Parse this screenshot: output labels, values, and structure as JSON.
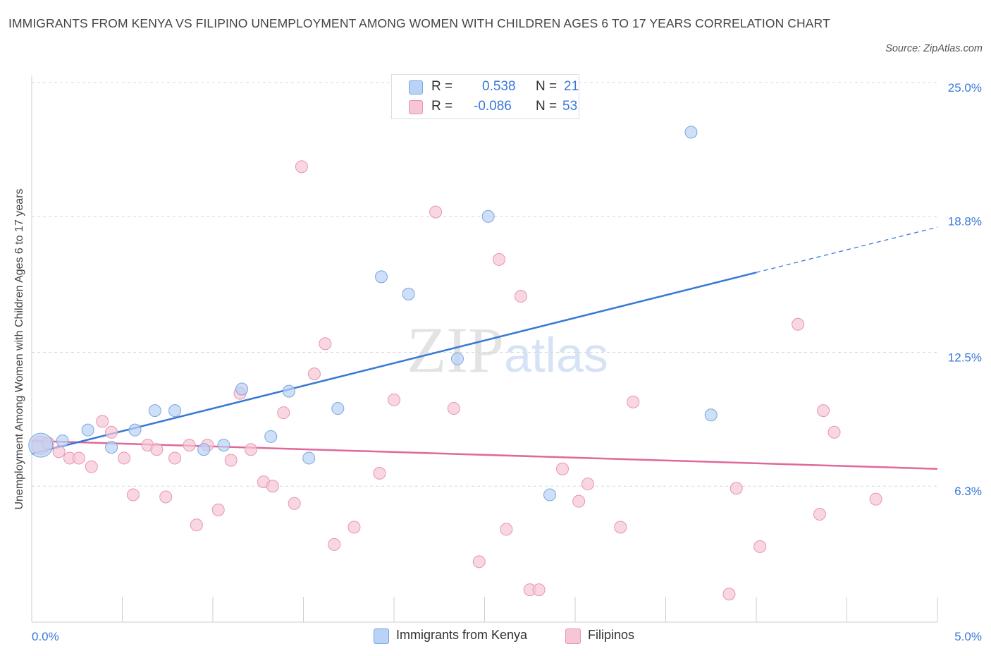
{
  "title": "IMMIGRANTS FROM KENYA VS FILIPINO UNEMPLOYMENT AMONG WOMEN WITH CHILDREN AGES 6 TO 17 YEARS CORRELATION CHART",
  "source": "Source: ZipAtlas.com",
  "watermark": "ZIPatlas",
  "legend": {
    "r_label": "R =",
    "n_label": "N =",
    "kenya": {
      "r": "0.538",
      "n": "21"
    },
    "filipino": {
      "r": "-0.086",
      "n": "53"
    }
  },
  "colors": {
    "kenya_fill": "#b9d2f5",
    "kenya_stroke": "#7aa6e0",
    "kenya_line": "#3a78d6",
    "filipino_fill": "#f7c6d6",
    "filipino_stroke": "#ea93b1",
    "filipino_line": "#e0689a",
    "axis_text": "#3a78d6",
    "grid": "#d8d8d8"
  },
  "chart_data": {
    "type": "scatter",
    "xlabel": "",
    "ylabel": "Unemployment Among Women with Children Ages 6 to 17 years",
    "xlim": [
      0,
      5
    ],
    "ylim": [
      0,
      25
    ],
    "x_tick_labels": [
      "0.0%",
      "5.0%"
    ],
    "y_ticks": [
      6.3,
      12.5,
      18.8,
      25.0
    ],
    "y_tick_labels": [
      "6.3%",
      "12.5%",
      "18.8%",
      "25.0%"
    ],
    "grid": true,
    "legend_position": "top-center",
    "series": [
      {
        "name": "Immigrants from Kenya",
        "points": [
          {
            "x": 0.05,
            "y": 8.2
          },
          {
            "x": 0.17,
            "y": 8.4
          },
          {
            "x": 0.31,
            "y": 8.9
          },
          {
            "x": 0.44,
            "y": 8.1
          },
          {
            "x": 0.57,
            "y": 8.9
          },
          {
            "x": 0.68,
            "y": 9.8
          },
          {
            "x": 0.79,
            "y": 9.8
          },
          {
            "x": 0.95,
            "y": 8.0
          },
          {
            "x": 1.06,
            "y": 8.2
          },
          {
            "x": 1.16,
            "y": 10.8
          },
          {
            "x": 1.32,
            "y": 8.6
          },
          {
            "x": 1.42,
            "y": 10.7
          },
          {
            "x": 1.53,
            "y": 7.6
          },
          {
            "x": 1.69,
            "y": 9.9
          },
          {
            "x": 1.93,
            "y": 16.0
          },
          {
            "x": 2.08,
            "y": 15.2
          },
          {
            "x": 2.35,
            "y": 12.2
          },
          {
            "x": 2.52,
            "y": 18.8
          },
          {
            "x": 2.86,
            "y": 5.9
          },
          {
            "x": 3.64,
            "y": 22.7
          },
          {
            "x": 3.75,
            "y": 9.6
          }
        ],
        "trend": {
          "x": [
            0.0,
            4.0
          ],
          "y": [
            7.8,
            16.2
          ],
          "dashed_to": {
            "x": 5.0,
            "y": 18.3
          }
        }
      },
      {
        "name": "Filipinos",
        "points": [
          {
            "x": 0.05,
            "y": 8.2
          },
          {
            "x": 0.09,
            "y": 8.3
          },
          {
            "x": 0.15,
            "y": 7.9
          },
          {
            "x": 0.21,
            "y": 7.6
          },
          {
            "x": 0.26,
            "y": 7.6
          },
          {
            "x": 0.33,
            "y": 7.2
          },
          {
            "x": 0.39,
            "y": 9.3
          },
          {
            "x": 0.44,
            "y": 8.8
          },
          {
            "x": 0.51,
            "y": 7.6
          },
          {
            "x": 0.56,
            "y": 5.9
          },
          {
            "x": 0.64,
            "y": 8.2
          },
          {
            "x": 0.69,
            "y": 8.0
          },
          {
            "x": 0.74,
            "y": 5.8
          },
          {
            "x": 0.79,
            "y": 7.6
          },
          {
            "x": 0.87,
            "y": 8.2
          },
          {
            "x": 0.91,
            "y": 4.5
          },
          {
            "x": 0.97,
            "y": 8.2
          },
          {
            "x": 1.03,
            "y": 5.2
          },
          {
            "x": 1.1,
            "y": 7.5
          },
          {
            "x": 1.15,
            "y": 10.6
          },
          {
            "x": 1.21,
            "y": 8.0
          },
          {
            "x": 1.28,
            "y": 6.5
          },
          {
            "x": 1.33,
            "y": 6.3
          },
          {
            "x": 1.39,
            "y": 9.7
          },
          {
            "x": 1.45,
            "y": 5.5
          },
          {
            "x": 1.49,
            "y": 21.1
          },
          {
            "x": 1.56,
            "y": 11.5
          },
          {
            "x": 1.62,
            "y": 12.9
          },
          {
            "x": 1.67,
            "y": 3.6
          },
          {
            "x": 1.78,
            "y": 4.4
          },
          {
            "x": 1.92,
            "y": 6.9
          },
          {
            "x": 2.0,
            "y": 10.3
          },
          {
            "x": 2.23,
            "y": 19.0
          },
          {
            "x": 2.33,
            "y": 9.9
          },
          {
            "x": 2.47,
            "y": 2.8
          },
          {
            "x": 2.58,
            "y": 16.8
          },
          {
            "x": 2.62,
            "y": 4.3
          },
          {
            "x": 2.7,
            "y": 15.1
          },
          {
            "x": 2.75,
            "y": 1.5
          },
          {
            "x": 2.8,
            "y": 1.5
          },
          {
            "x": 2.93,
            "y": 7.1
          },
          {
            "x": 3.02,
            "y": 5.6
          },
          {
            "x": 3.07,
            "y": 6.4
          },
          {
            "x": 3.25,
            "y": 4.4
          },
          {
            "x": 3.32,
            "y": 10.2
          },
          {
            "x": 3.85,
            "y": 1.3
          },
          {
            "x": 3.89,
            "y": 6.2
          },
          {
            "x": 4.02,
            "y": 3.5
          },
          {
            "x": 4.23,
            "y": 13.8
          },
          {
            "x": 4.35,
            "y": 5.0
          },
          {
            "x": 4.37,
            "y": 9.8
          },
          {
            "x": 4.43,
            "y": 8.8
          },
          {
            "x": 4.66,
            "y": 5.7
          }
        ],
        "trend": {
          "x": [
            0.0,
            5.0
          ],
          "y": [
            8.4,
            7.1
          ]
        }
      }
    ]
  }
}
